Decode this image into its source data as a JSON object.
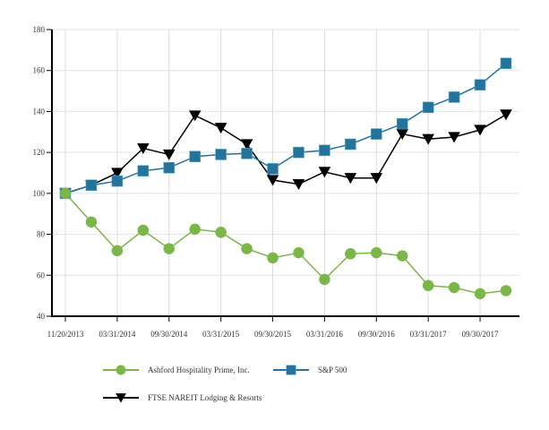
{
  "chart_data": {
    "type": "line",
    "title": "",
    "xlabel": "",
    "ylabel": "",
    "ylim": [
      40,
      180
    ],
    "yticks": [
      40,
      60,
      80,
      100,
      120,
      140,
      160,
      180
    ],
    "grid": true,
    "legend_position": "bottom",
    "categories": [
      "11/20/2013",
      "",
      "03/31/2014",
      "",
      "09/30/2014",
      "",
      "03/31/2015",
      "",
      "09/30/2015",
      "",
      "03/31/2016",
      "",
      "09/30/2016",
      "",
      "03/31/2017",
      "",
      "09/30/2017",
      ""
    ],
    "series": [
      {
        "name": "Ashford Hospitality Prime, Inc.",
        "color": "#7ab648",
        "marker": "circle",
        "values": [
          100,
          86,
          72,
          82,
          73,
          82.5,
          81,
          73,
          68.5,
          71,
          58,
          70.5,
          71,
          69.5,
          55,
          54,
          51,
          52.5
        ]
      },
      {
        "name": "S&P 500",
        "color": "#23739a",
        "marker": "square",
        "values": [
          100,
          104,
          106,
          111,
          112.5,
          118,
          119,
          119.5,
          112,
          120,
          121,
          124,
          129,
          134,
          142,
          147,
          153,
          163.5
        ]
      },
      {
        "name": "FTSE NAREIT Lodging & Resorts",
        "color": "#000000",
        "marker": "triangle-down",
        "values": [
          100,
          104,
          110,
          122,
          119,
          138,
          132,
          124,
          106.5,
          104.5,
          110.5,
          107.5,
          107.5,
          129,
          126.5,
          127.5,
          131,
          138.5
        ]
      }
    ]
  }
}
